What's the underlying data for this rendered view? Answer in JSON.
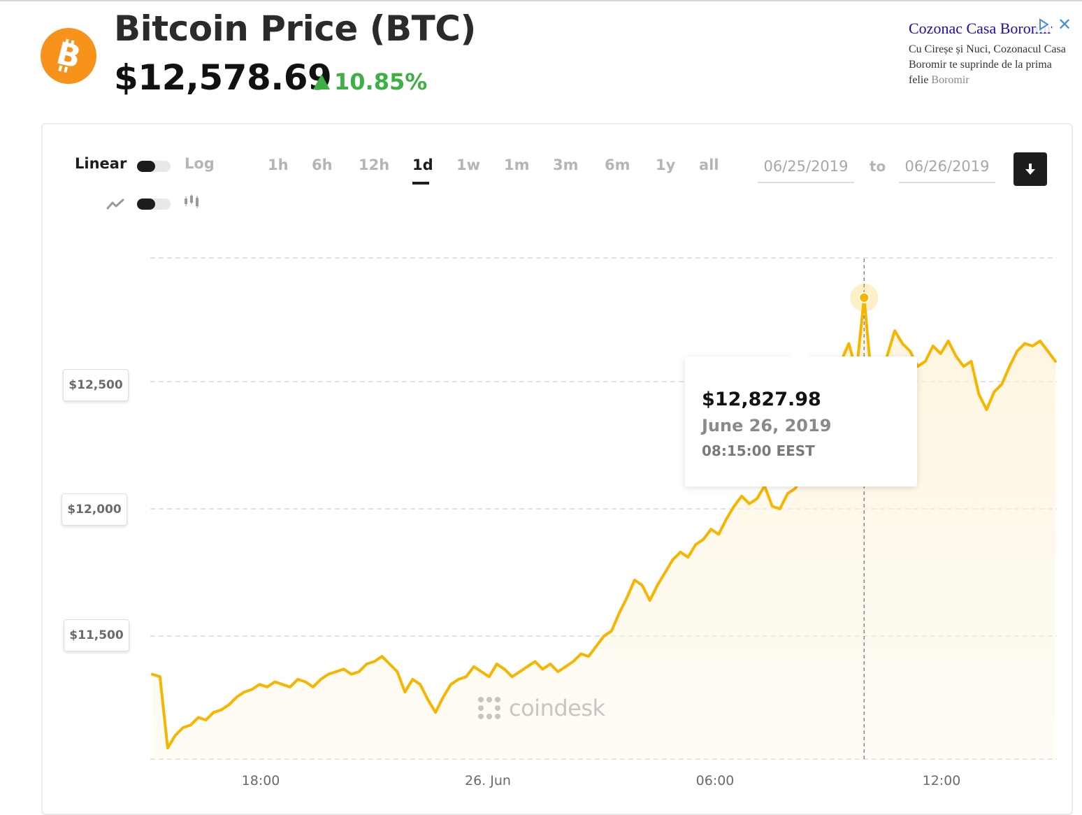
{
  "header": {
    "title": "Bitcoin Price (BTC)",
    "price": "$12,578.69",
    "change": "10.85%",
    "change_color": "#3cb043",
    "logo_color": "#f7931a",
    "logo_icon": "bitcoin-icon"
  },
  "ad": {
    "title": "Cozonac Casa Boromir",
    "body": "Cu Cireșe și Nuci, Cozonacul Casa Boromir te suprinde de la prima felie",
    "brand": "Boromir",
    "close_icon": "close-icon",
    "choices_icon": "adchoices-icon"
  },
  "controls": {
    "scale_linear": "Linear",
    "scale_log": "Log",
    "ranges": [
      "1h",
      "6h",
      "12h",
      "1d",
      "1w",
      "1m",
      "3m",
      "6m",
      "1y",
      "all"
    ],
    "active_range": "1d",
    "date_from": "06/25/2019",
    "to_label": "to",
    "date_to": "06/26/2019",
    "download_icon": "download-icon",
    "line_icon": "line-chart-icon",
    "candle_icon": "candlestick-icon"
  },
  "tooltip": {
    "price": "$12,827.98",
    "date": "June 26, 2019",
    "time": "08:15:00 EEST"
  },
  "watermark": "coindesk",
  "chart_data": {
    "type": "line",
    "y_ticks": [
      "$11,500",
      "$12,000",
      "$12,500"
    ],
    "y_tick_values": [
      11500,
      12000,
      12500
    ],
    "x_tick_labels": [
      "18:00",
      "26. Jun",
      "06:00",
      "12:00"
    ],
    "ylim": [
      11000,
      13000
    ],
    "grid": true,
    "line_color": "#f7b500",
    "series": [
      {
        "values": [
          11350,
          11340,
          11060,
          11110,
          11140,
          11150,
          11180,
          11170,
          11200,
          11210,
          11230,
          11260,
          11280,
          11290,
          11310,
          11300,
          11320,
          11310,
          11300,
          11330,
          11320,
          11300,
          11330,
          11350,
          11360,
          11370,
          11350,
          11360,
          11390,
          11400,
          11420,
          11390,
          11360,
          11280,
          11330,
          11310,
          11250,
          11200,
          11260,
          11310,
          11330,
          11340,
          11380,
          11360,
          11340,
          11390,
          11370,
          11340,
          11360,
          11380,
          11400,
          11370,
          11390,
          11360,
          11380,
          11400,
          11430,
          11420,
          11460,
          11500,
          11520,
          11590,
          11650,
          11720,
          11700,
          11640,
          11700,
          11750,
          11800,
          11830,
          11810,
          11860,
          11880,
          11920,
          11900,
          11960,
          12010,
          12050,
          12020,
          12040,
          12090,
          12010,
          12000,
          12060,
          12080,
          12130,
          12180,
          12270,
          12350,
          12460,
          12580,
          12650,
          12540,
          12830,
          12500,
          12420,
          12600,
          12700,
          12650,
          12620,
          12560,
          12580,
          12640,
          12610,
          12660,
          12600,
          12560,
          12580,
          12450,
          12390,
          12460,
          12490,
          12560,
          12620,
          12650,
          12640,
          12660,
          12620,
          12580
        ]
      }
    ]
  }
}
